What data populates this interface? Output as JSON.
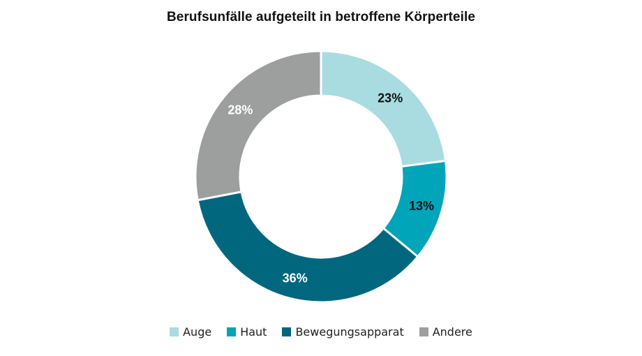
{
  "chart_data": {
    "type": "pie",
    "title": "Berufsunfälle aufgeteilt in betroffene Körperteile",
    "donut": true,
    "legend_position": "bottom",
    "slices": [
      {
        "name": "Auge",
        "value": 23,
        "label": "23%",
        "color": "#a8dce0",
        "label_color": "#111111"
      },
      {
        "name": "Haut",
        "value": 13,
        "label": "13%",
        "color": "#00a5b9",
        "label_color": "#111111"
      },
      {
        "name": "Bewegungsapparat",
        "value": 36,
        "label": "36%",
        "color": "#00677f",
        "label_color": "#ffffff"
      },
      {
        "name": "Andere",
        "value": 28,
        "label": "28%",
        "color": "#9d9e9e",
        "label_color": "#ffffff"
      }
    ]
  }
}
